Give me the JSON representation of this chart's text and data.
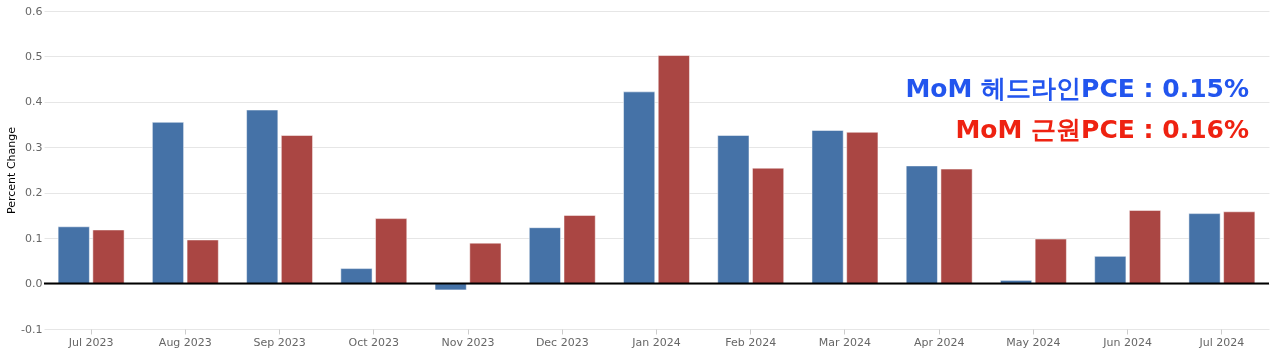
{
  "chart_data": {
    "type": "bar",
    "ylabel": "Percent Change",
    "categories": [
      "Jul 2023",
      "Aug 2023",
      "Sep 2023",
      "Oct 2023",
      "Nov 2023",
      "Dec 2023",
      "Jan 2024",
      "Feb 2024",
      "Mar 2024",
      "Apr 2024",
      "May 2024",
      "Jun 2024",
      "Jul 2024"
    ],
    "series": [
      {
        "color": "#4572a7",
        "values": [
          0.125,
          0.355,
          0.382,
          0.033,
          -0.014,
          0.123,
          0.422,
          0.326,
          0.337,
          0.259,
          0.007,
          0.06,
          0.154
        ]
      },
      {
        "color": "#aa4643",
        "values": [
          0.118,
          0.096,
          0.326,
          0.143,
          0.089,
          0.15,
          0.502,
          0.254,
          0.333,
          0.252,
          0.098,
          0.161,
          0.158
        ]
      }
    ],
    "ylim": [
      -0.1,
      0.6
    ],
    "yticks": [
      {
        "value": -0.1,
        "label": "-0.1"
      },
      {
        "value": 0,
        "label": "0.0"
      },
      {
        "value": 0.1,
        "label": "0.1"
      },
      {
        "value": 0.2,
        "label": "0.2"
      },
      {
        "value": 0.3,
        "label": "0.3"
      },
      {
        "value": 0.4,
        "label": "0.4"
      },
      {
        "value": 0.5,
        "label": "0.5"
      },
      {
        "value": 0.6,
        "label": "0.6"
      }
    ],
    "grid": "y",
    "ref_lines": [
      {
        "axis": "y",
        "value": 0,
        "color": "#000000"
      }
    ],
    "annotations": [
      "MoM 헤드라인PCE : 0.15%",
      "MoM 근원PCE : 0.16%"
    ]
  }
}
